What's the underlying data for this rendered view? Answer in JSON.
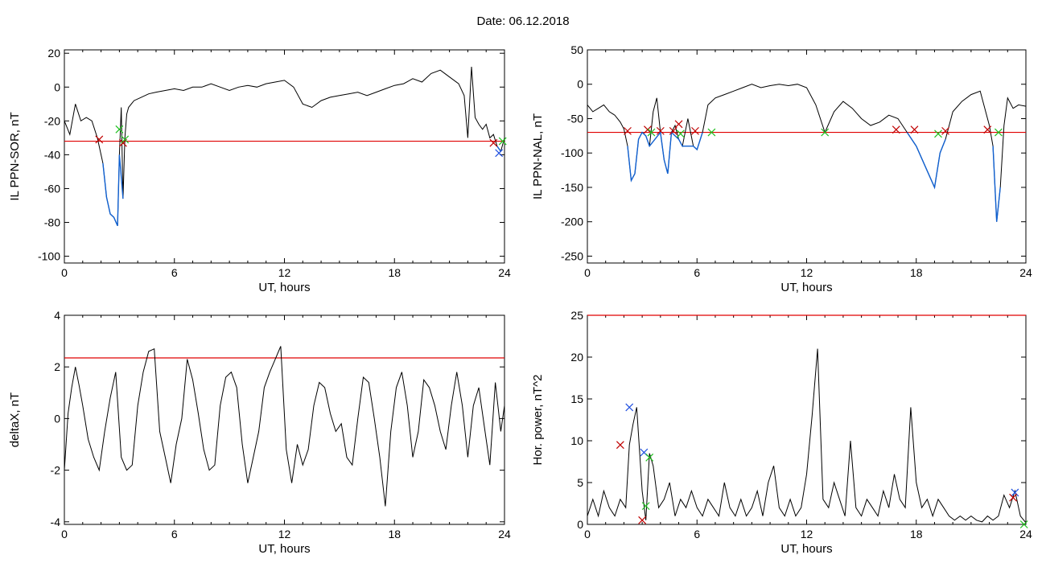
{
  "figure_title": "Date:  06.12.2018",
  "colors": {
    "axes": "#000000",
    "threshold": "#e00000",
    "highlight": "#1060d0",
    "marker_red": "#c00000",
    "marker_green": "#20c020",
    "marker_blue": "#2050e0"
  },
  "chart_data": [
    {
      "type": "line",
      "title": "",
      "xlabel": "UT, hours",
      "ylabel": "IL PPN-SOR, nT",
      "xlim": [
        0,
        24
      ],
      "ylim": [
        -104,
        22
      ],
      "xticks": [
        0,
        6,
        12,
        18,
        24
      ],
      "yticks": [
        20,
        0,
        -20,
        -40,
        -60,
        -80,
        -100
      ],
      "threshold": -32,
      "grid": false,
      "series": [
        {
          "x": [
            0,
            0.3,
            0.6,
            0.9,
            1.2,
            1.5,
            1.8,
            2.1,
            2.3,
            2.5,
            2.7,
            2.9,
            3.0,
            3.1,
            3.2,
            3.3,
            3.4,
            3.5,
            3.8,
            4.2,
            4.6,
            5.0,
            5.5,
            6.0,
            6.5,
            7.0,
            7.5,
            8.0,
            8.5,
            9.0,
            9.5,
            10.0,
            10.5,
            11.0,
            11.5,
            12.0,
            12.5,
            13.0,
            13.5,
            14.0,
            14.5,
            15.0,
            15.5,
            16.0,
            16.5,
            17.0,
            17.5,
            18.0,
            18.5,
            19.0,
            19.5,
            20.0,
            20.5,
            21.0,
            21.5,
            21.8,
            22.0,
            22.2,
            22.4,
            22.6,
            22.8,
            23.0,
            23.2,
            23.4,
            23.6,
            23.8,
            24.0
          ],
          "y": [
            -20,
            -28,
            -10,
            -20,
            -18,
            -20,
            -30,
            -45,
            -65,
            -75,
            -77,
            -82,
            -40,
            -12,
            -66,
            -30,
            -16,
            -12,
            -8,
            -6,
            -4,
            -3,
            -2,
            -1,
            -2,
            0,
            0,
            2,
            0,
            -2,
            0,
            1,
            0,
            2,
            3,
            4,
            0,
            -10,
            -12,
            -8,
            -6,
            -5,
            -4,
            -3,
            -5,
            -3,
            -1,
            1,
            2,
            5,
            3,
            8,
            10,
            6,
            2,
            -5,
            -30,
            12,
            -18,
            -22,
            -25,
            -22,
            -30,
            -28,
            -35,
            -38,
            -30
          ]
        }
      ],
      "highlight_ranges": [
        [
          1.9,
          3.5
        ],
        [
          23.3,
          24
        ]
      ],
      "markers": [
        {
          "color": "red",
          "x": 1.9,
          "y": -31
        },
        {
          "color": "green",
          "x": 3.0,
          "y": -25
        },
        {
          "color": "red",
          "x": 3.2,
          "y": -33
        },
        {
          "color": "green",
          "x": 3.3,
          "y": -31
        },
        {
          "color": "red",
          "x": 23.4,
          "y": -33
        },
        {
          "color": "green",
          "x": 23.9,
          "y": -32
        },
        {
          "color": "blue",
          "x": 23.7,
          "y": -39
        }
      ]
    },
    {
      "type": "line",
      "title": "",
      "xlabel": "UT, hours",
      "ylabel": "IL PPN-NAL, nT",
      "xlim": [
        0,
        24
      ],
      "ylim": [
        -260,
        50
      ],
      "xticks": [
        0,
        6,
        12,
        18,
        24
      ],
      "yticks": [
        50,
        0,
        -50,
        -100,
        -150,
        -200,
        -250
      ],
      "threshold": -70,
      "grid": false,
      "series": [
        {
          "x": [
            0,
            0.3,
            0.6,
            0.9,
            1.2,
            1.5,
            1.8,
            2.0,
            2.2,
            2.4,
            2.6,
            2.8,
            3.0,
            3.2,
            3.4,
            3.6,
            3.8,
            4.0,
            4.2,
            4.4,
            4.6,
            4.8,
            5.0,
            5.2,
            5.5,
            5.8,
            6.0,
            6.3,
            6.6,
            7.0,
            7.5,
            8.0,
            8.5,
            9.0,
            9.5,
            10.0,
            10.5,
            11.0,
            11.5,
            12.0,
            12.5,
            13.0,
            13.5,
            14.0,
            14.5,
            15.0,
            15.5,
            16.0,
            16.5,
            17.0,
            17.5,
            18.0,
            18.5,
            19.0,
            19.3,
            19.6,
            20.0,
            20.5,
            21.0,
            21.5,
            22.0,
            22.2,
            22.4,
            22.6,
            22.8,
            23.0,
            23.3,
            23.6,
            24.0
          ],
          "y": [
            -30,
            -40,
            -35,
            -30,
            -40,
            -45,
            -55,
            -65,
            -90,
            -140,
            -130,
            -80,
            -70,
            -75,
            -90,
            -40,
            -20,
            -70,
            -110,
            -130,
            -70,
            -60,
            -80,
            -90,
            -50,
            -90,
            -95,
            -70,
            -30,
            -20,
            -15,
            -10,
            -5,
            0,
            -5,
            -2,
            0,
            -2,
            0,
            -5,
            -30,
            -70,
            -40,
            -25,
            -35,
            -50,
            -60,
            -55,
            -45,
            -50,
            -70,
            -90,
            -120,
            -150,
            -100,
            -80,
            -40,
            -25,
            -15,
            -10,
            -60,
            -90,
            -200,
            -150,
            -60,
            -20,
            -35,
            -30,
            -32
          ]
        }
      ],
      "highlight_ranges": [
        [
          2.2,
          7.0
        ],
        [
          16.8,
          19.8
        ],
        [
          21.9,
          22.6
        ]
      ],
      "markers": [
        {
          "color": "red",
          "x": 2.2,
          "y": -68
        },
        {
          "color": "red",
          "x": 3.3,
          "y": -66
        },
        {
          "color": "green",
          "x": 3.5,
          "y": -70
        },
        {
          "color": "red",
          "x": 4.0,
          "y": -68
        },
        {
          "color": "red",
          "x": 4.7,
          "y": -68
        },
        {
          "color": "red",
          "x": 5.0,
          "y": -58
        },
        {
          "color": "green",
          "x": 5.1,
          "y": -72
        },
        {
          "color": "red",
          "x": 5.9,
          "y": -68
        },
        {
          "color": "green",
          "x": 6.8,
          "y": -70
        },
        {
          "color": "green",
          "x": 13.0,
          "y": -70
        },
        {
          "color": "red",
          "x": 16.9,
          "y": -66
        },
        {
          "color": "red",
          "x": 17.9,
          "y": -66
        },
        {
          "color": "green",
          "x": 19.2,
          "y": -72
        },
        {
          "color": "red",
          "x": 19.6,
          "y": -68
        },
        {
          "color": "red",
          "x": 21.9,
          "y": -66
        },
        {
          "color": "green",
          "x": 22.5,
          "y": -70
        }
      ]
    },
    {
      "type": "line",
      "title": "",
      "xlabel": "UT, hours",
      "ylabel": "deltaX, nT",
      "xlim": [
        0,
        24
      ],
      "ylim": [
        -4.1,
        4
      ],
      "xticks": [
        0,
        6,
        12,
        18,
        24
      ],
      "yticks": [
        4,
        2,
        0,
        -2,
        -4
      ],
      "threshold": 2.35,
      "grid": false,
      "series": [
        {
          "x": [
            0,
            0.2,
            0.4,
            0.6,
            0.8,
            1.0,
            1.3,
            1.6,
            1.9,
            2.2,
            2.5,
            2.8,
            3.1,
            3.4,
            3.7,
            4.0,
            4.3,
            4.6,
            4.9,
            5.2,
            5.5,
            5.8,
            6.1,
            6.4,
            6.7,
            7.0,
            7.3,
            7.6,
            7.9,
            8.2,
            8.5,
            8.8,
            9.1,
            9.4,
            9.7,
            10.0,
            10.3,
            10.6,
            10.9,
            11.2,
            11.5,
            11.8,
            12.1,
            12.4,
            12.7,
            13.0,
            13.3,
            13.6,
            13.9,
            14.2,
            14.5,
            14.8,
            15.1,
            15.4,
            15.7,
            16.0,
            16.3,
            16.6,
            16.9,
            17.2,
            17.5,
            17.8,
            18.1,
            18.4,
            18.7,
            19.0,
            19.3,
            19.6,
            19.9,
            20.2,
            20.5,
            20.8,
            21.1,
            21.4,
            21.7,
            22.0,
            22.3,
            22.6,
            22.9,
            23.2,
            23.5,
            23.8,
            24.0
          ],
          "y": [
            -2,
            0.2,
            1.2,
            2.0,
            1.3,
            0.5,
            -0.8,
            -1.5,
            -2.0,
            -0.5,
            0.8,
            1.8,
            -1.5,
            -2.0,
            -1.8,
            0.5,
            1.8,
            2.6,
            2.7,
            -0.5,
            -1.5,
            -2.5,
            -1.0,
            0,
            2.3,
            1.5,
            0.2,
            -1.2,
            -2.0,
            -1.8,
            0.5,
            1.6,
            1.8,
            1.2,
            -1.0,
            -2.5,
            -1.5,
            -0.5,
            1.2,
            1.8,
            2.3,
            2.8,
            -1.2,
            -2.5,
            -1.0,
            -1.8,
            -1.2,
            0.5,
            1.4,
            1.2,
            0.2,
            -0.5,
            -0.2,
            -1.5,
            -1.8,
            0,
            1.6,
            1.4,
            0,
            -1.5,
            -3.4,
            -0.5,
            1.2,
            1.8,
            0.5,
            -1.5,
            -0.5,
            1.5,
            1.2,
            0.5,
            -0.5,
            -1.2,
            0.5,
            1.8,
            0.5,
            -1.5,
            0.5,
            1.2,
            -0.3,
            -1.8,
            1.4,
            -0.5,
            0.5
          ]
        }
      ],
      "highlight_ranges": [],
      "markers": []
    },
    {
      "type": "line",
      "title": "",
      "xlabel": "UT, hours",
      "ylabel": "Hor. power, nT^2",
      "xlim": [
        0,
        24
      ],
      "ylim": [
        0,
        25
      ],
      "xticks": [
        0,
        6,
        12,
        18,
        24
      ],
      "yticks": [
        0,
        5,
        10,
        15,
        20,
        25
      ],
      "threshold": 25,
      "grid": false,
      "series": [
        {
          "x": [
            0,
            0.3,
            0.6,
            0.9,
            1.2,
            1.5,
            1.8,
            2.1,
            2.3,
            2.5,
            2.7,
            3.0,
            3.2,
            3.4,
            3.6,
            3.9,
            4.2,
            4.5,
            4.8,
            5.1,
            5.4,
            5.7,
            6.0,
            6.3,
            6.6,
            6.9,
            7.2,
            7.5,
            7.8,
            8.1,
            8.4,
            8.7,
            9.0,
            9.3,
            9.6,
            9.9,
            10.2,
            10.5,
            10.8,
            11.1,
            11.4,
            11.7,
            12.0,
            12.3,
            12.6,
            12.9,
            13.2,
            13.5,
            13.8,
            14.1,
            14.4,
            14.7,
            15.0,
            15.3,
            15.6,
            15.9,
            16.2,
            16.5,
            16.8,
            17.1,
            17.4,
            17.7,
            18.0,
            18.3,
            18.6,
            18.9,
            19.2,
            19.5,
            19.8,
            20.1,
            20.4,
            20.7,
            21.0,
            21.3,
            21.6,
            21.9,
            22.2,
            22.5,
            22.8,
            23.1,
            23.4,
            23.7,
            24.0
          ],
          "y": [
            1,
            3,
            1,
            4,
            2,
            1,
            3,
            2,
            9.5,
            12,
            14,
            4,
            0.5,
            8.5,
            7,
            2,
            3,
            5,
            1,
            3,
            2,
            4,
            2,
            1,
            3,
            2,
            1,
            5,
            2,
            1,
            3,
            1,
            2,
            4,
            1,
            5,
            7,
            2,
            1,
            3,
            1,
            2,
            6,
            13,
            21,
            3,
            2,
            5,
            3,
            1,
            10,
            2,
            1,
            3,
            2,
            1,
            4,
            2,
            6,
            3,
            2,
            14,
            5,
            2,
            3,
            1,
            3,
            2,
            1,
            0.5,
            1,
            0.5,
            1,
            0.5,
            0.3,
            1,
            0.5,
            1,
            3.5,
            2,
            4,
            1,
            0.2
          ]
        }
      ],
      "highlight_ranges": [],
      "markers": [
        {
          "color": "red",
          "x": 1.8,
          "y": 9.5
        },
        {
          "color": "blue",
          "x": 2.3,
          "y": 14
        },
        {
          "color": "blue",
          "x": 3.1,
          "y": 8.6
        },
        {
          "color": "green",
          "x": 3.4,
          "y": 8.0
        },
        {
          "color": "green",
          "x": 3.2,
          "y": 2.2
        },
        {
          "color": "red",
          "x": 3.0,
          "y": 0.5
        },
        {
          "color": "blue",
          "x": 23.4,
          "y": 3.8
        },
        {
          "color": "red",
          "x": 23.3,
          "y": 3.2
        },
        {
          "color": "green",
          "x": 23.9,
          "y": 0
        }
      ]
    }
  ]
}
